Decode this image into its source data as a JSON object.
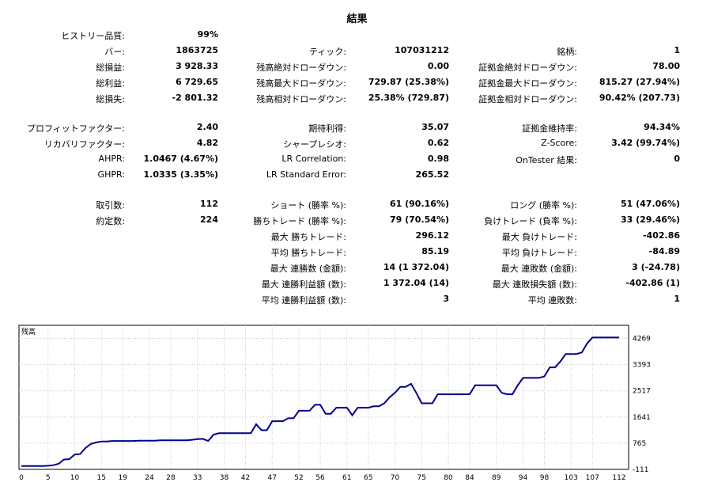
{
  "title": "結果",
  "rows": [
    {
      "c1": {
        "label": "ヒストリー品質:",
        "value": "99%"
      }
    },
    {
      "c1": {
        "label": "バー:",
        "value": "1863725"
      },
      "c2": {
        "label": "ティック:",
        "value": "107031212"
      },
      "c3": {
        "label": "銘柄:",
        "value": "1"
      }
    },
    {
      "c1": {
        "label": "総損益:",
        "value": "3 928.33"
      },
      "c2": {
        "label": "残高絶対ドローダウン:",
        "value": "0.00"
      },
      "c3": {
        "label": "証拠金絶対ドローダウン:",
        "value": "78.00"
      }
    },
    {
      "c1": {
        "label": "総利益:",
        "value": "6 729.65"
      },
      "c2": {
        "label": "残高最大ドローダウン:",
        "value": "729.87 (25.38%)"
      },
      "c3": {
        "label": "証拠金最大ドローダウン:",
        "value": "815.27 (27.94%)"
      }
    },
    {
      "c1": {
        "label": "総損失:",
        "value": "-2 801.32"
      },
      "c2": {
        "label": "残高相対ドローダウン:",
        "value": "25.38% (729.87)"
      },
      "c3": {
        "label": "証拠金相対ドローダウン:",
        "value": "90.42% (207.73)"
      }
    },
    {
      "c1": {
        "label": "プロフィットファクター:",
        "value": "2.40"
      },
      "c2": {
        "label": "期待利得:",
        "value": "35.07"
      },
      "c3": {
        "label": "証拠金維持率:",
        "value": "94.34%"
      }
    },
    {
      "c1": {
        "label": "リカバリファクター:",
        "value": "4.82"
      },
      "c2": {
        "label": "シャープレシオ:",
        "value": "0.62"
      },
      "c3": {
        "label": "Z-Score:",
        "value": "3.42 (99.74%)"
      }
    },
    {
      "c1": {
        "label": "AHPR:",
        "value": "1.0467 (4.67%)"
      },
      "c2": {
        "label": "LR Correlation:",
        "value": "0.98"
      },
      "c3": {
        "label": "OnTester 結果:",
        "value": "0"
      }
    },
    {
      "c1": {
        "label": "GHPR:",
        "value": "1.0335 (3.35%)"
      },
      "c2": {
        "label": "LR Standard Error:",
        "value": "265.52"
      }
    },
    {
      "c1": {
        "label": "取引数:",
        "value": "112"
      },
      "c2": {
        "label": "ショート (勝率 %):",
        "value": "61 (90.16%)"
      },
      "c3": {
        "label": "ロング (勝率 %):",
        "value": "51 (47.06%)"
      }
    },
    {
      "c1": {
        "label": "約定数:",
        "value": "224"
      },
      "c2": {
        "label": "勝ちトレード (勝率 %):",
        "value": "79 (70.54%)"
      },
      "c3": {
        "label": "負けトレード (負率 %):",
        "value": "33 (29.46%)"
      }
    },
    {
      "c2": {
        "label": "最大 勝ちトレード:",
        "value": "296.12"
      },
      "c3": {
        "label": "最大 負けトレード:",
        "value": "-402.86"
      }
    },
    {
      "c2": {
        "label": "平均 勝ちトレード:",
        "value": "85.19"
      },
      "c3": {
        "label": "平均 負けトレード:",
        "value": "-84.89"
      }
    },
    {
      "c2": {
        "label": "最大 連勝数 (金額):",
        "value": "14 (1 372.04)"
      },
      "c3": {
        "label": "最大 連敗数 (金額):",
        "value": "3 (-24.78)"
      }
    },
    {
      "c2": {
        "label": "最大 連勝利益額 (数):",
        "value": "1 372.04 (14)"
      },
      "c3": {
        "label": "最大 連敗損失額 (数):",
        "value": "-402.86 (1)"
      }
    },
    {
      "c2": {
        "label": "平均 連勝利益額 (数):",
        "value": "3"
      },
      "c3": {
        "label": "平均 連敗数:",
        "value": "1"
      }
    }
  ],
  "chart_data": {
    "type": "line",
    "title": "残高",
    "xlabel": "",
    "ylabel": "",
    "xlim": [
      0,
      112
    ],
    "ylim": [
      -111,
      4707
    ],
    "grid": true,
    "line_color": "#00008b",
    "x_ticks": [
      "0",
      "5",
      "10",
      "15",
      "19",
      "24",
      "28",
      "33",
      "38",
      "42",
      "47",
      "52",
      "56",
      "61",
      "65",
      "70",
      "75",
      "80",
      "84",
      "89",
      "94",
      "98",
      "103",
      "107",
      "112"
    ],
    "y_ticks": [
      "-111",
      "765",
      "1641",
      "2517",
      "3393",
      "4269"
    ],
    "series": [
      {
        "x": [
          0,
          1,
          2,
          3,
          4,
          5,
          6,
          7,
          8,
          9,
          10,
          11,
          12,
          13,
          14,
          15,
          16,
          17,
          18,
          19,
          20,
          21,
          22,
          23,
          24,
          25,
          26,
          27,
          28,
          29,
          30,
          31,
          32,
          33,
          34,
          35,
          36,
          37,
          38,
          39,
          40,
          41,
          42,
          43,
          44,
          45,
          46,
          47,
          48,
          49,
          50,
          51,
          52,
          53,
          54,
          55,
          56,
          57,
          58,
          59,
          60,
          61,
          62,
          63,
          64,
          65,
          66,
          67,
          68,
          69,
          70,
          71,
          72,
          73,
          74,
          75,
          76,
          77,
          78,
          79,
          80,
          81,
          82,
          83,
          84,
          85,
          86,
          87,
          88,
          89,
          90,
          91,
          92,
          93,
          94,
          95,
          96,
          97,
          98,
          99,
          100,
          101,
          102,
          103,
          104,
          105,
          106,
          107,
          108,
          109,
          110,
          111,
          112
        ],
        "values": [
          0,
          0,
          0,
          0,
          0,
          10,
          30,
          80,
          220,
          230,
          390,
          400,
          600,
          740,
          790,
          820,
          820,
          840,
          840,
          840,
          840,
          840,
          850,
          850,
          850,
          850,
          860,
          860,
          860,
          860,
          860,
          860,
          880,
          900,
          910,
          840,
          1050,
          1100,
          1100,
          1100,
          1100,
          1100,
          1100,
          1100,
          1400,
          1200,
          1200,
          1500,
          1500,
          1500,
          1600,
          1600,
          1850,
          1850,
          1850,
          2050,
          2050,
          1750,
          1750,
          1950,
          1950,
          1950,
          1700,
          1950,
          1950,
          1950,
          2000,
          2000,
          2100,
          2300,
          2450,
          2650,
          2650,
          2750,
          2450,
          2100,
          2100,
          2100,
          2400,
          2400,
          2400,
          2400,
          2400,
          2400,
          2400,
          2700,
          2700,
          2700,
          2700,
          2700,
          2450,
          2400,
          2400,
          2700,
          2950,
          2950,
          2950,
          2950,
          3000,
          3300,
          3300,
          3500,
          3750,
          3750,
          3750,
          3800,
          4100,
          4300,
          4300,
          4300,
          4300,
          4300,
          4300
        ],
        "style": "sparkline"
      }
    ]
  }
}
